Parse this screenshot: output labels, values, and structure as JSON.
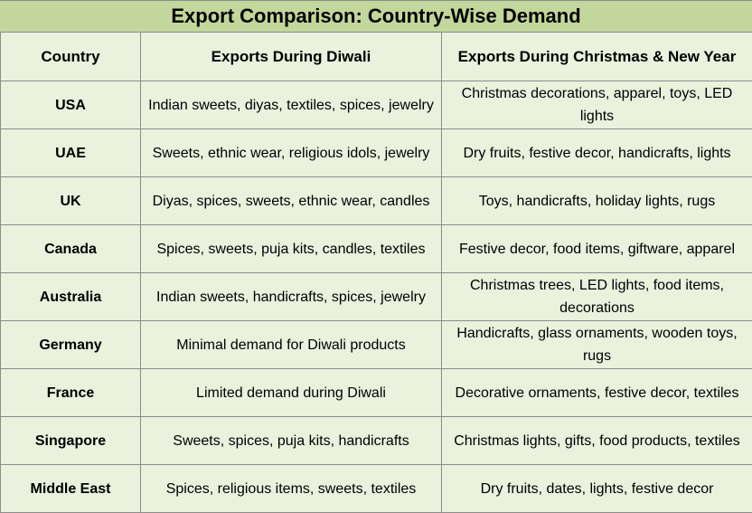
{
  "title": "Export Comparison: Country-Wise Demand",
  "headers": [
    "Country",
    "Exports During Diwali",
    "Exports During Christmas & New Year"
  ],
  "rows": [
    {
      "country": "USA",
      "diwali": "Indian sweets, diyas, textiles, spices, jewelry",
      "christmas": "Christmas decorations, apparel, toys, LED lights"
    },
    {
      "country": "UAE",
      "diwali": "Sweets, ethnic wear, religious idols, jewelry",
      "christmas": "Dry fruits, festive decor, handicrafts, lights"
    },
    {
      "country": "UK",
      "diwali": "Diyas, spices, sweets, ethnic wear, candles",
      "christmas": "Toys, handicrafts, holiday lights, rugs"
    },
    {
      "country": "Canada",
      "diwali": "Spices, sweets, puja kits, candles, textiles",
      "christmas": "Festive decor, food items, giftware, apparel"
    },
    {
      "country": "Australia",
      "diwali": "Indian sweets, handicrafts, spices, jewelry",
      "christmas": "Christmas trees, LED lights, food items, decorations"
    },
    {
      "country": "Germany",
      "diwali": "Minimal demand for Diwali products",
      "christmas": "Handicrafts, glass ornaments, wooden toys, rugs"
    },
    {
      "country": "France",
      "diwali": "Limited demand during Diwali",
      "christmas": "Decorative ornaments, festive decor, textiles"
    },
    {
      "country": "Singapore",
      "diwali": "Sweets, spices, puja kits, handicrafts",
      "christmas": "Christmas lights, gifts, food products, textiles"
    },
    {
      "country": "Middle East",
      "diwali": "Spices, religious items, sweets, textiles",
      "christmas": "Dry fruits, dates, lights, festive decor"
    }
  ]
}
